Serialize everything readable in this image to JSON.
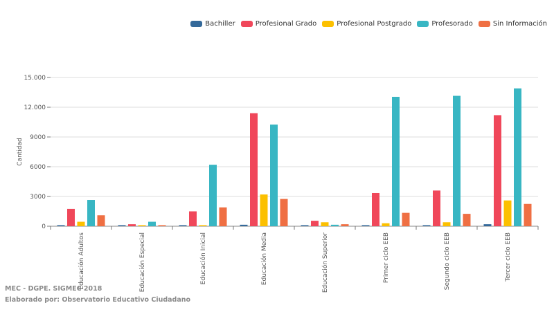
{
  "chart_data": {
    "type": "bar",
    "title": "",
    "xlabel": "",
    "ylabel": "Cantidad",
    "ylim": [
      0,
      15000
    ],
    "yticks": [
      0,
      3000,
      6000,
      9000,
      12000,
      15000
    ],
    "ytick_labels": [
      "0",
      "3000",
      "6000",
      "9000",
      "12.000",
      "15.000"
    ],
    "grid": true,
    "legend_position": "top-right",
    "categories": [
      "Educación Adultos",
      "Educación Especial",
      "Educación Inicial",
      "Educación Media",
      "Educación Superior",
      "Primer ciclo EEB",
      "Segundo ciclo EEB",
      "Tercer ciclo EEB"
    ],
    "series": [
      {
        "name": "Bachiller",
        "color": "#34699a",
        "values": [
          30,
          10,
          20,
          150,
          20,
          50,
          60,
          200
        ]
      },
      {
        "name": "Profesional Grado",
        "color": "#f0475a",
        "values": [
          1750,
          200,
          1500,
          11400,
          550,
          3350,
          3600,
          11200
        ]
      },
      {
        "name": "Profesional Postgrado",
        "color": "#fcc000",
        "values": [
          450,
          30,
          100,
          3200,
          400,
          300,
          400,
          2600
        ]
      },
      {
        "name": "Profesorado",
        "color": "#38b6c3",
        "values": [
          2650,
          450,
          6200,
          10250,
          150,
          13050,
          13150,
          13900
        ]
      },
      {
        "name": "Sin Información",
        "color": "#ef6f43",
        "values": [
          1100,
          90,
          1900,
          2750,
          200,
          1350,
          1250,
          2250
        ]
      }
    ]
  },
  "footer": {
    "source": "MEC - DGPE. SIGMEC 2018",
    "credit": "Elaborado por: Observatorio Educativo Ciudadano"
  }
}
